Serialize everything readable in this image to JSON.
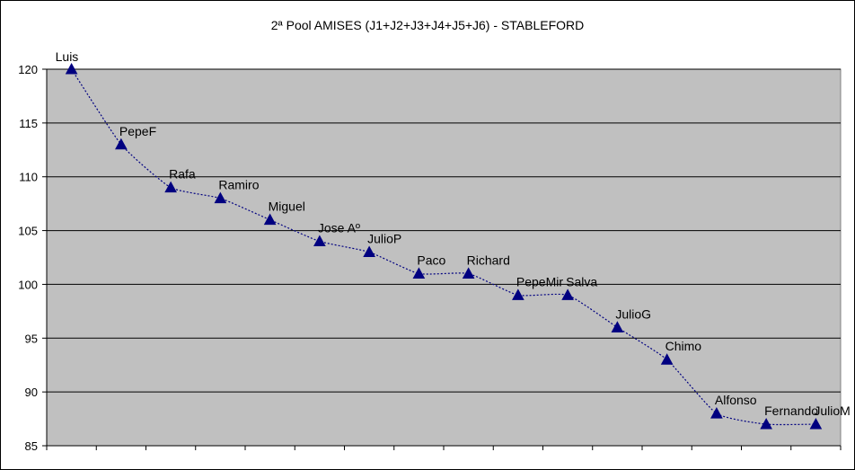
{
  "chart_data": {
    "type": "line",
    "title": "2ª Pool AMISES (J1+J2+J3+J4+J5+J6) - STABLEFORD",
    "xlabel": "",
    "ylabel": "",
    "ylim": [
      85,
      120
    ],
    "yticks": [
      85,
      90,
      95,
      100,
      105,
      110,
      115,
      120
    ],
    "grid": true,
    "legend": "none",
    "series": [
      {
        "marker": "triangle",
        "line_style": "dotted",
        "color": "#000080",
        "points": [
          {
            "label": "Luis",
            "value": 120
          },
          {
            "label": "PepeF",
            "value": 113
          },
          {
            "label": "Rafa",
            "value": 109
          },
          {
            "label": "Ramiro",
            "value": 108
          },
          {
            "label": "Miguel",
            "value": 106
          },
          {
            "label": "Jose Aº",
            "value": 104
          },
          {
            "label": "JulioP",
            "value": 103
          },
          {
            "label": "Paco",
            "value": 101
          },
          {
            "label": "Richard",
            "value": 101
          },
          {
            "label": "PepeMir",
            "value": 99
          },
          {
            "label": "Salva",
            "value": 99
          },
          {
            "label": "JulioG",
            "value": 96
          },
          {
            "label": "Chimo",
            "value": 93
          },
          {
            "label": "Alfonso",
            "value": 88
          },
          {
            "label": "Fernando",
            "value": 87
          },
          {
            "label": "JulioM",
            "value": 87
          }
        ]
      }
    ],
    "colors": {
      "plot_background": "#c0c0c0",
      "gridline": "#000000",
      "series": "#000080"
    }
  }
}
